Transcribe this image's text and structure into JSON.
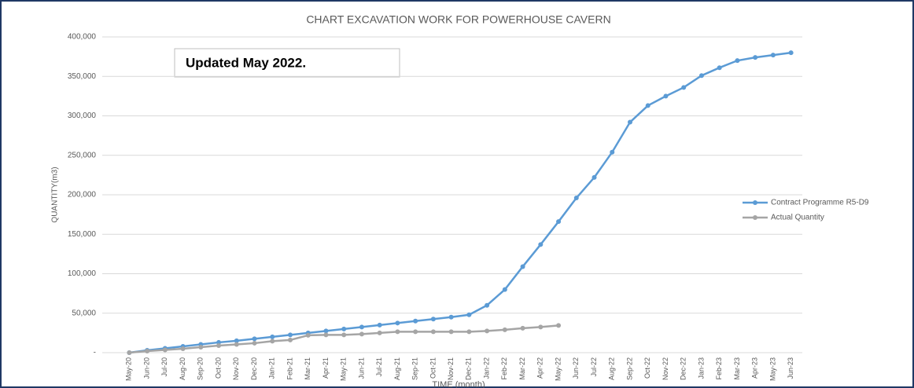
{
  "chart_data": {
    "type": "line",
    "title": "CHART EXCAVATION WORK FOR POWERHOUSE CAVERN",
    "annotation": "Updated May 2022.",
    "xlabel": "TIME (month)",
    "ylabel": "QUANTITY(m3)",
    "categories": [
      "May-20",
      "Jun-20",
      "Jul-20",
      "Aug-20",
      "Sep-20",
      "Oct-20",
      "Nov-20",
      "Dec-20",
      "Jan-21",
      "Feb-21",
      "Mar-21",
      "Apr-21",
      "May-21",
      "Jun-21",
      "Jul-21",
      "Aug-21",
      "Sep-21",
      "Oct-21",
      "Nov-21",
      "Dec-21",
      "Jan-22",
      "Feb-22",
      "Mar-22",
      "Apr-22",
      "May-22",
      "Jun-22",
      "Jul-22",
      "Aug-22",
      "Sep-22",
      "Oct-22",
      "Nov-22",
      "Dec-22",
      "Jan-23",
      "Feb-23",
      "Mar-23",
      "Apr-23",
      "May-23",
      "Jun-23"
    ],
    "series": [
      {
        "name": "Contract Programme R5-D9",
        "color": "#5b9bd5",
        "values": [
          0,
          3000,
          5500,
          8000,
          10500,
          13000,
          15000,
          17500,
          20000,
          22500,
          25000,
          27500,
          30000,
          32500,
          35000,
          37500,
          40000,
          42500,
          45000,
          48000,
          60000,
          80000,
          109000,
          137000,
          166000,
          196000,
          222000,
          254000,
          292000,
          313000,
          325000,
          336000,
          351000,
          361000,
          370000,
          374000,
          377000,
          380000
        ]
      },
      {
        "name": "Actual Quantity",
        "color": "#a5a5a5",
        "values": [
          0,
          2000,
          3500,
          5000,
          7000,
          9000,
          10500,
          12000,
          14500,
          16000,
          22000,
          22500,
          22500,
          23500,
          25000,
          26500,
          26500,
          26500,
          26500,
          26500,
          27500,
          29000,
          31000,
          32500,
          34500,
          null,
          null,
          null,
          null,
          null,
          null,
          null,
          null,
          null,
          null,
          null,
          null,
          null
        ]
      }
    ],
    "ylim": [
      0,
      400000
    ],
    "yticks": [
      {
        "value": 0,
        "label": "-"
      },
      {
        "value": 50000,
        "label": "50,000"
      },
      {
        "value": 100000,
        "label": "100,000"
      },
      {
        "value": 150000,
        "label": "150,000"
      },
      {
        "value": 200000,
        "label": "200,000"
      },
      {
        "value": 250000,
        "label": "250,000"
      },
      {
        "value": 300000,
        "label": "300,000"
      },
      {
        "value": 350000,
        "label": "350,000"
      },
      {
        "value": 400000,
        "label": "400,000"
      }
    ],
    "grid": true,
    "legend": "right"
  }
}
